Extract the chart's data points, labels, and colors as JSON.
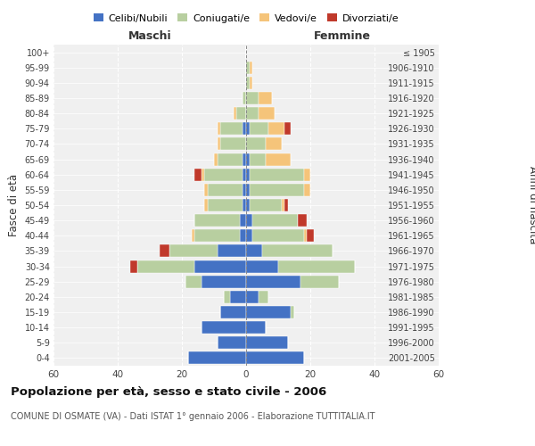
{
  "age_groups": [
    "0-4",
    "5-9",
    "10-14",
    "15-19",
    "20-24",
    "25-29",
    "30-34",
    "35-39",
    "40-44",
    "45-49",
    "50-54",
    "55-59",
    "60-64",
    "65-69",
    "70-74",
    "75-79",
    "80-84",
    "85-89",
    "90-94",
    "95-99",
    "100+"
  ],
  "birth_years": [
    "2001-2005",
    "1996-2000",
    "1991-1995",
    "1986-1990",
    "1981-1985",
    "1976-1980",
    "1971-1975",
    "1966-1970",
    "1961-1965",
    "1956-1960",
    "1951-1955",
    "1946-1950",
    "1941-1945",
    "1936-1940",
    "1931-1935",
    "1926-1930",
    "1921-1925",
    "1916-1920",
    "1911-1915",
    "1906-1910",
    "≤ 1905"
  ],
  "male": {
    "celibi": [
      18,
      9,
      14,
      8,
      5,
      14,
      16,
      9,
      2,
      2,
      1,
      1,
      1,
      1,
      0,
      1,
      0,
      0,
      0,
      0,
      0
    ],
    "coniugati": [
      0,
      0,
      0,
      0,
      2,
      5,
      18,
      15,
      14,
      14,
      11,
      11,
      12,
      8,
      8,
      7,
      3,
      1,
      0,
      0,
      0
    ],
    "vedovi": [
      0,
      0,
      0,
      0,
      0,
      0,
      0,
      0,
      1,
      0,
      1,
      1,
      1,
      1,
      1,
      1,
      1,
      0,
      0,
      0,
      0
    ],
    "divorziati": [
      0,
      0,
      0,
      0,
      0,
      0,
      2,
      3,
      0,
      0,
      0,
      0,
      2,
      0,
      0,
      0,
      0,
      0,
      0,
      0,
      0
    ]
  },
  "female": {
    "nubili": [
      18,
      13,
      6,
      14,
      4,
      17,
      10,
      5,
      2,
      2,
      1,
      1,
      1,
      1,
      0,
      1,
      0,
      0,
      0,
      0,
      0
    ],
    "coniugate": [
      0,
      0,
      0,
      1,
      3,
      12,
      24,
      22,
      16,
      14,
      10,
      17,
      17,
      5,
      6,
      6,
      4,
      4,
      1,
      1,
      0
    ],
    "vedove": [
      0,
      0,
      0,
      0,
      0,
      0,
      0,
      0,
      1,
      0,
      1,
      2,
      2,
      8,
      5,
      5,
      5,
      4,
      1,
      1,
      0
    ],
    "divorziate": [
      0,
      0,
      0,
      0,
      0,
      0,
      0,
      0,
      2,
      3,
      1,
      0,
      0,
      0,
      0,
      2,
      0,
      0,
      0,
      0,
      0
    ]
  },
  "colors": {
    "celibi": "#4472c4",
    "coniugati": "#b8cfa0",
    "vedovi": "#f5c47a",
    "divorziati": "#c0392b"
  },
  "title": "Popolazione per età, sesso e stato civile - 2006",
  "subtitle": "COMUNE DI OSMATE (VA) - Dati ISTAT 1° gennaio 2006 - Elaborazione TUTTITALIA.IT",
  "xlabel_left": "Maschi",
  "xlabel_right": "Femmine",
  "ylabel_left": "Fasce di età",
  "ylabel_right": "Anni di nascita",
  "xlim": 60,
  "background_color": "#ffffff",
  "plot_bg": "#f0f0f0",
  "grid_color": "#cccccc"
}
